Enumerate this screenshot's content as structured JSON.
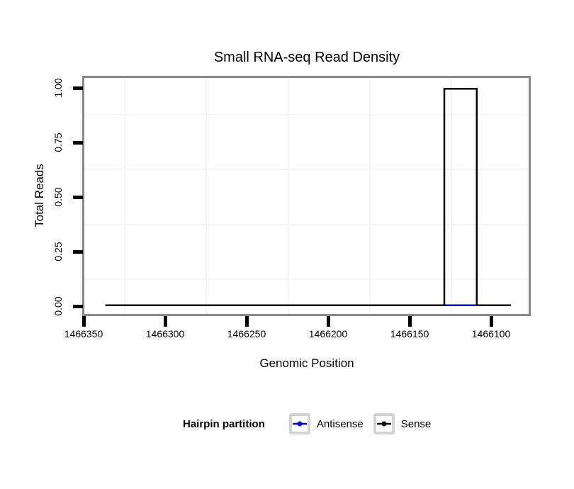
{
  "title": "Small RNA-seq Read Density",
  "axes": {
    "y": {
      "label": "Total Reads",
      "tick_labels": [
        "1.00",
        "0.75",
        "0.50",
        "0.25",
        "0.00"
      ]
    },
    "x": {
      "label": "Genomic Position",
      "tick_labels": [
        "1466350",
        "1466300",
        "1466250",
        "1466200",
        "1466150",
        "1466100"
      ]
    }
  },
  "legend": {
    "title": "Hairpin partition",
    "items": [
      {
        "label": "Sense",
        "color": "#000000"
      },
      {
        "label": "Antisense",
        "color": "#0000EE"
      }
    ]
  },
  "colors": {
    "panel_border": "#898989",
    "minor_grid": "#f5f5f5",
    "tick": "#000000",
    "text": "#000000"
  },
  "chart_data": {
    "type": "line",
    "subtype": "step",
    "title": "Small RNA-seq Read Density",
    "xlabel": "Genomic Position",
    "ylabel": "Total Reads",
    "x_axis_reversed": true,
    "xlim": [
      1466351,
      1466077
    ],
    "ylim": [
      -0.04,
      1.05
    ],
    "x_ticks": [
      1466350,
      1466300,
      1466250,
      1466200,
      1466150,
      1466100
    ],
    "y_ticks": [
      0.0,
      0.25,
      0.5,
      0.75,
      1.0
    ],
    "grid": "minor-only",
    "legend_position": "bottom",
    "legend_title": "Hairpin partition",
    "series": [
      {
        "name": "Antisense",
        "color": "#0000EE",
        "points": [
          {
            "x": 1466338,
            "y": 0
          },
          {
            "x": 1466088,
            "y": 0
          }
        ]
      },
      {
        "name": "Sense",
        "color": "#000000",
        "points": [
          {
            "x": 1466338,
            "y": 0
          },
          {
            "x": 1466129,
            "y": 0
          },
          {
            "x": 1466129,
            "y": 1
          },
          {
            "x": 1466109,
            "y": 1
          },
          {
            "x": 1466109,
            "y": 0
          },
          {
            "x": 1466088,
            "y": 0
          }
        ]
      }
    ]
  }
}
